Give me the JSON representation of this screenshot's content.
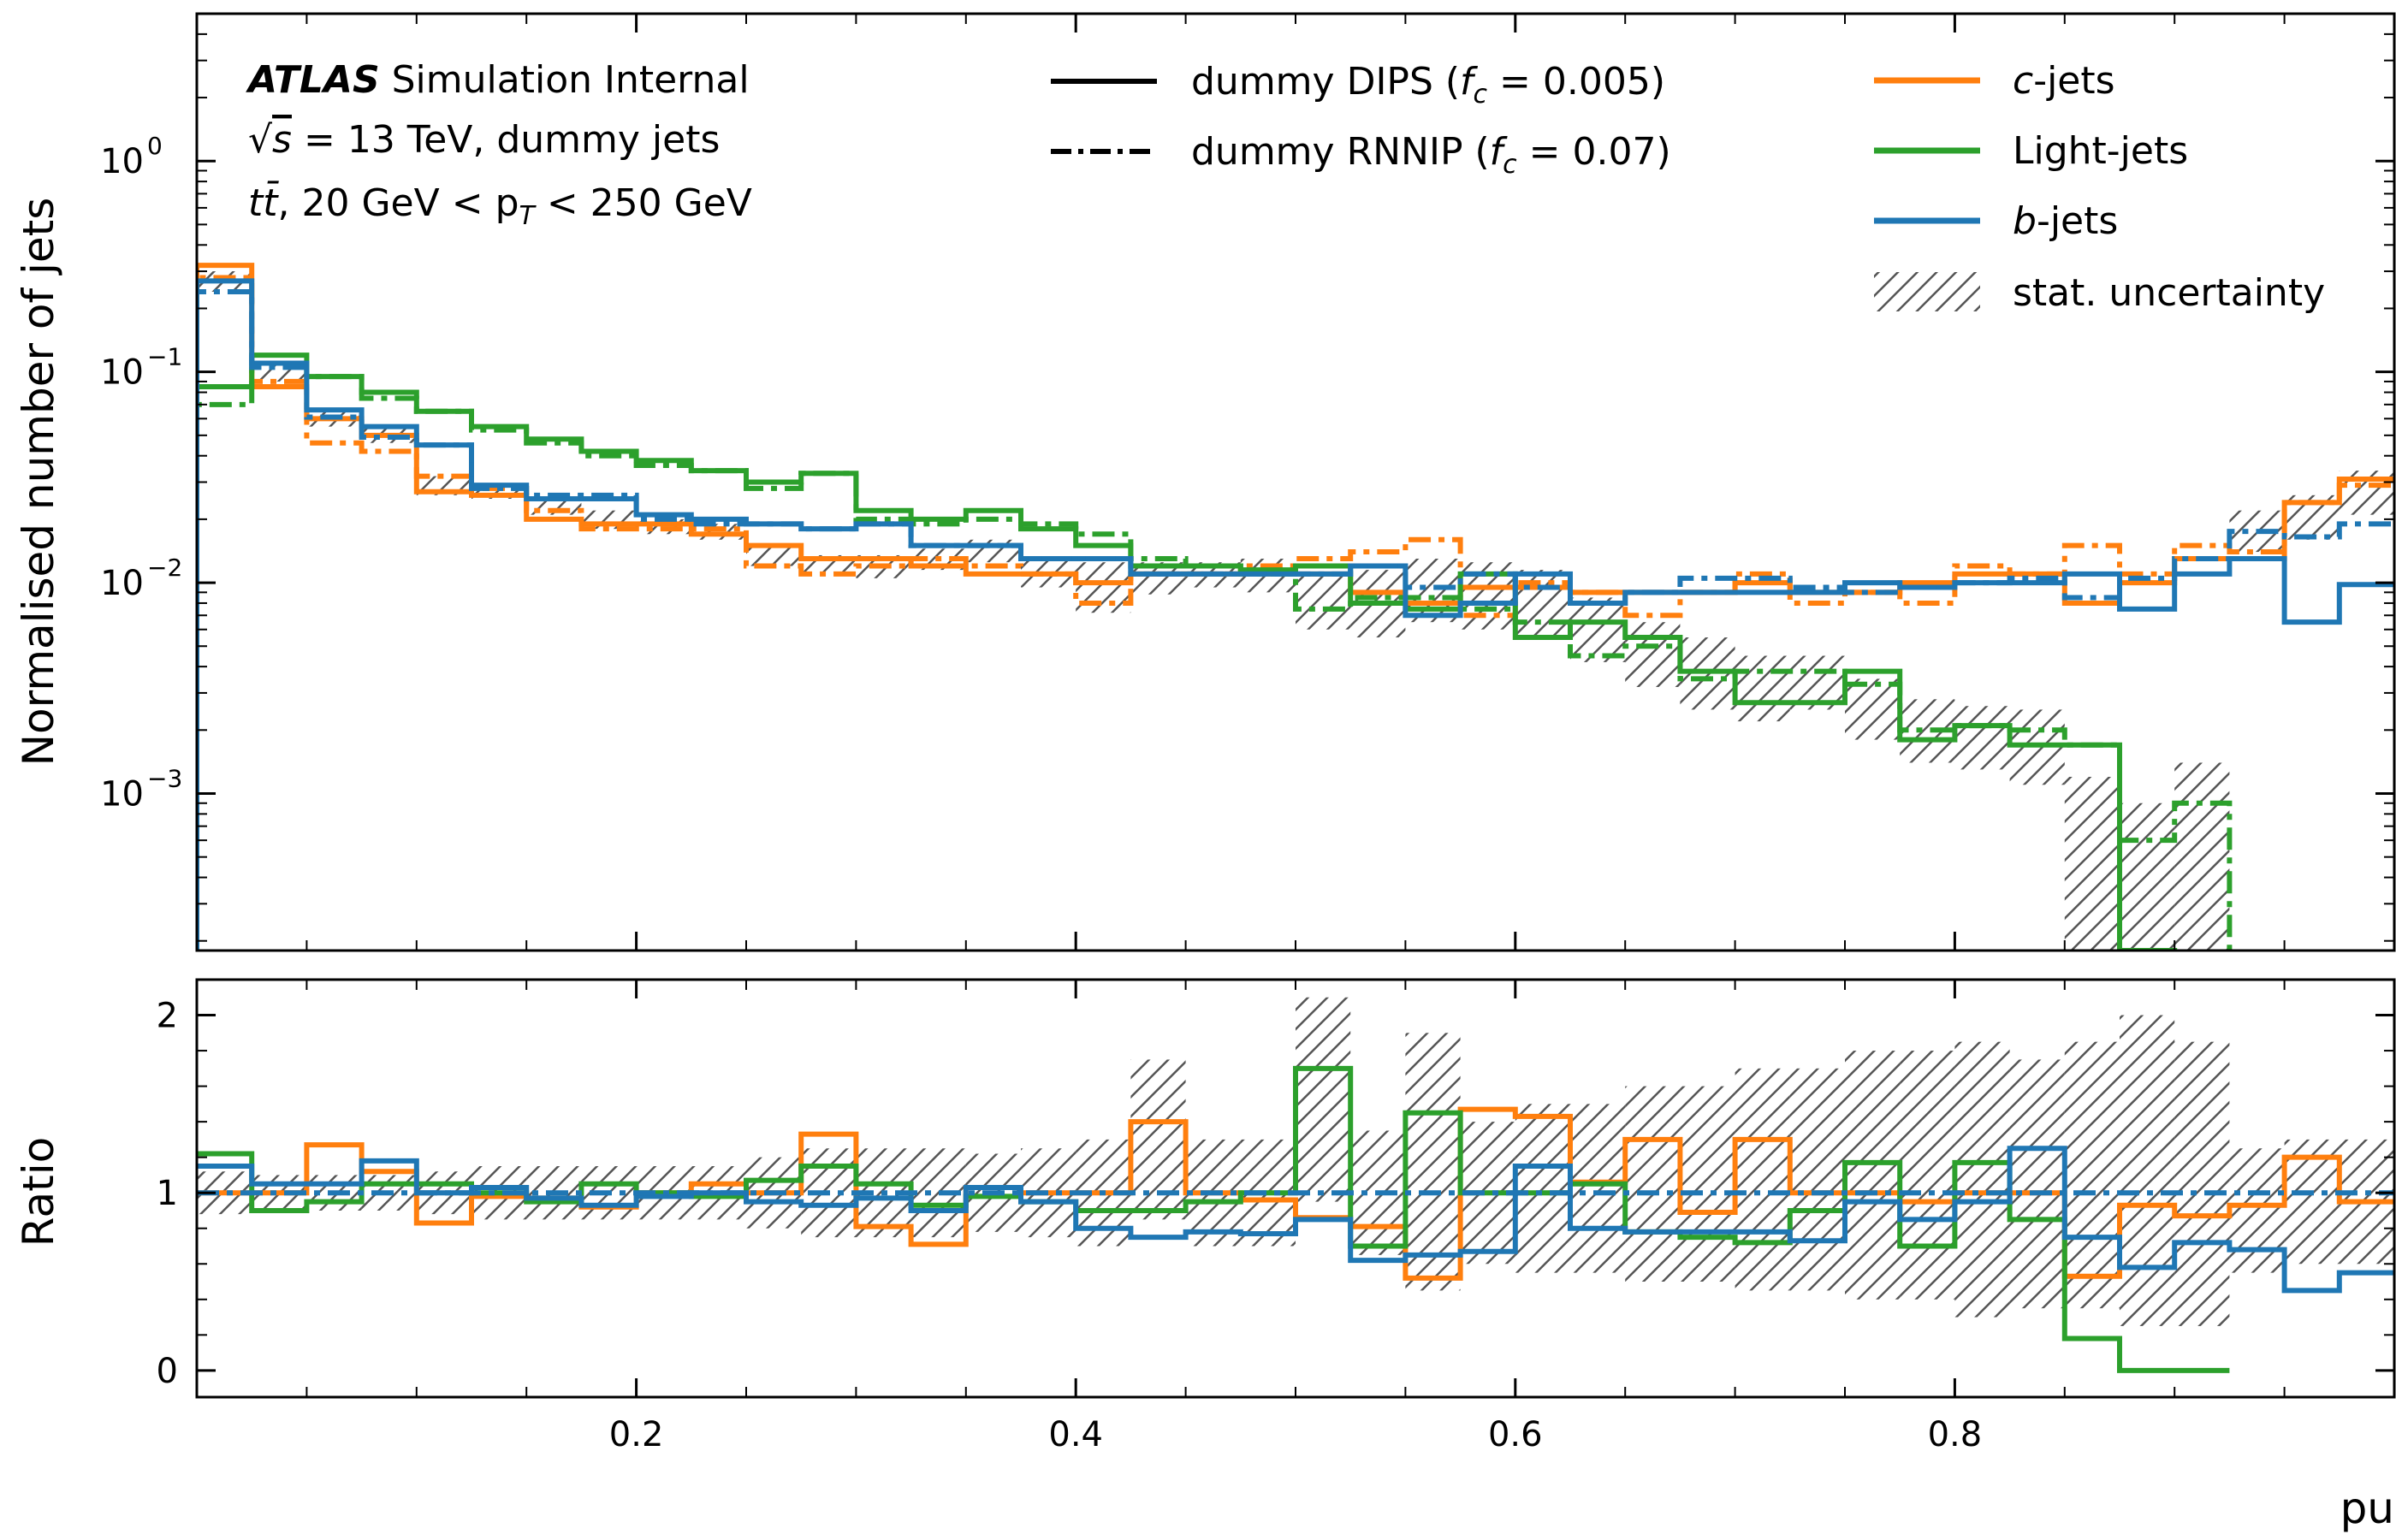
{
  "chart_data": [
    {
      "panel": "main",
      "type": "step",
      "ylabel": "Normalised number of jets",
      "yscale": "log",
      "ylim": [
        0.00018,
        5.0
      ],
      "xlim": [
        0.0,
        1.0
      ],
      "yticks": [
        {
          "label": "10",
          "exp": "0",
          "value": 1.0
        },
        {
          "label": "10",
          "exp": "−1",
          "value": 0.1
        },
        {
          "label": "10",
          "exp": "−2",
          "value": 0.01
        },
        {
          "label": "10",
          "exp": "−3",
          "value": 0.001
        }
      ],
      "bin_edges": [
        0,
        0.025,
        0.05,
        0.075,
        0.1,
        0.125,
        0.15,
        0.175,
        0.2,
        0.225,
        0.25,
        0.275,
        0.3,
        0.325,
        0.35,
        0.375,
        0.4,
        0.425,
        0.45,
        0.475,
        0.5,
        0.525,
        0.55,
        0.575,
        0.6,
        0.625,
        0.65,
        0.675,
        0.7,
        0.725,
        0.75,
        0.775,
        0.8,
        0.825,
        0.85,
        0.875,
        0.9,
        0.925,
        0.95,
        0.975,
        1.0
      ],
      "series": [
        {
          "id": "c-dips",
          "color": "#ff7f0e",
          "style": "solid",
          "values": [
            0.32,
            0.085,
            0.06,
            0.05,
            0.027,
            0.026,
            0.02,
            0.019,
            0.019,
            0.017,
            0.015,
            0.013,
            0.013,
            0.012,
            0.011,
            0.011,
            0.01,
            0.011,
            0.011,
            0.011,
            0.011,
            0.009,
            0.008,
            0.0095,
            0.0095,
            0.009,
            0.009,
            0.009,
            0.01,
            0.009,
            0.009,
            0.01,
            0.011,
            0.011,
            0.008,
            0.01,
            0.013,
            0.013,
            0.024,
            0.031
          ]
        },
        {
          "id": "c-rnnip",
          "color": "#ff7f0e",
          "style": "dashdot",
          "values": [
            0.28,
            0.09,
            0.046,
            0.042,
            0.032,
            0.028,
            0.022,
            0.018,
            0.018,
            0.018,
            0.012,
            0.011,
            0.012,
            0.013,
            0.012,
            0.011,
            0.008,
            0.011,
            0.011,
            0.012,
            0.013,
            0.014,
            0.016,
            0.007,
            0.01,
            0.009,
            0.007,
            0.009,
            0.011,
            0.008,
            0.009,
            0.008,
            0.012,
            0.011,
            0.015,
            0.011,
            0.015,
            0.014,
            0.024,
            0.029
          ]
        },
        {
          "id": "light-dips",
          "color": "#2ca02c",
          "style": "solid",
          "values": [
            0.085,
            0.12,
            0.095,
            0.08,
            0.065,
            0.055,
            0.048,
            0.042,
            0.038,
            0.034,
            0.03,
            0.033,
            0.022,
            0.02,
            0.022,
            0.018,
            0.015,
            0.012,
            0.012,
            0.0115,
            0.012,
            0.008,
            0.0075,
            0.011,
            0.0055,
            0.0065,
            0.0055,
            0.0038,
            0.0027,
            0.0027,
            0.0038,
            0.0018,
            0.0021,
            0.0017,
            0.0017,
            0.00018,
            0.00015,
            0.00015,
            0.00015,
            0.00015
          ]
        },
        {
          "id": "light-rnnip",
          "color": "#2ca02c",
          "style": "dashdot",
          "values": [
            0.07,
            0.11,
            0.095,
            0.075,
            0.065,
            0.053,
            0.046,
            0.04,
            0.036,
            0.034,
            0.028,
            0.033,
            0.02,
            0.019,
            0.02,
            0.019,
            0.017,
            0.013,
            0.012,
            0.011,
            0.0075,
            0.0085,
            0.0085,
            0.0075,
            0.0065,
            0.0045,
            0.005,
            0.0035,
            0.0038,
            0.0038,
            0.0033,
            0.002,
            0.0021,
            0.002,
            0.0017,
            0.0006,
            0.0009,
            0.00015,
            0.00015,
            0.00015
          ]
        },
        {
          "id": "b-dips",
          "color": "#1f77b4",
          "style": "solid",
          "values": [
            0.27,
            0.11,
            0.066,
            0.055,
            0.045,
            0.029,
            0.025,
            0.025,
            0.021,
            0.02,
            0.019,
            0.018,
            0.019,
            0.015,
            0.015,
            0.013,
            0.013,
            0.011,
            0.011,
            0.011,
            0.011,
            0.012,
            0.007,
            0.008,
            0.011,
            0.008,
            0.009,
            0.009,
            0.009,
            0.009,
            0.01,
            0.0095,
            0.01,
            0.01,
            0.011,
            0.0075,
            0.011,
            0.013,
            0.0065,
            0.0098
          ]
        },
        {
          "id": "b-rnnip",
          "color": "#1f77b4",
          "style": "dashdot",
          "values": [
            0.24,
            0.105,
            0.061,
            0.049,
            0.045,
            0.028,
            0.026,
            0.026,
            0.02,
            0.019,
            0.019,
            0.018,
            0.019,
            0.015,
            0.015,
            0.013,
            0.013,
            0.011,
            0.011,
            0.011,
            0.011,
            0.012,
            0.0095,
            0.011,
            0.0095,
            0.008,
            0.009,
            0.0105,
            0.0105,
            0.0095,
            0.009,
            0.0095,
            0.01,
            0.0105,
            0.0085,
            0.0105,
            0.013,
            0.0175,
            0.0165,
            0.019
          ]
        }
      ],
      "uncertainty": [
        {
          "lo": 0.24,
          "hi": 0.3
        },
        {
          "lo": 0.09,
          "hi": 0.11
        },
        {
          "lo": 0.055,
          "hi": 0.065
        },
        {
          "lo": 0.046,
          "hi": 0.054
        },
        {
          "lo": 0.026,
          "hi": 0.032
        },
        {
          "lo": 0.025,
          "hi": 0.029
        },
        {
          "lo": 0.021,
          "hi": 0.025
        },
        {
          "lo": 0.018,
          "hi": 0.022
        },
        {
          "lo": 0.017,
          "hi": 0.02
        },
        {
          "lo": 0.016,
          "hi": 0.019
        },
        {
          "lo": 0.012,
          "hi": 0.015
        },
        {
          "lo": 0.011,
          "hi": 0.0135
        },
        {
          "lo": 0.0105,
          "hi": 0.0135
        },
        {
          "lo": 0.0115,
          "hi": 0.0145
        },
        {
          "lo": 0.0125,
          "hi": 0.016
        },
        {
          "lo": 0.0095,
          "hi": 0.013
        },
        {
          "lo": 0.0072,
          "hi": 0.0125
        },
        {
          "lo": 0.0088,
          "hi": 0.0125
        },
        {
          "lo": 0.0095,
          "hi": 0.0125
        },
        {
          "lo": 0.009,
          "hi": 0.013
        },
        {
          "lo": 0.006,
          "hi": 0.011
        },
        {
          "lo": 0.0055,
          "hi": 0.0115
        },
        {
          "lo": 0.0065,
          "hi": 0.013
        },
        {
          "lo": 0.006,
          "hi": 0.0125
        },
        {
          "lo": 0.0055,
          "hi": 0.0115
        },
        {
          "lo": 0.0042,
          "hi": 0.0085
        },
        {
          "lo": 0.0032,
          "hi": 0.0065
        },
        {
          "lo": 0.0025,
          "hi": 0.0055
        },
        {
          "lo": 0.0022,
          "hi": 0.0045
        },
        {
          "lo": 0.0025,
          "hi": 0.0045
        },
        {
          "lo": 0.0018,
          "hi": 0.0035
        },
        {
          "lo": 0.0014,
          "hi": 0.0028
        },
        {
          "lo": 0.0013,
          "hi": 0.0026
        },
        {
          "lo": 0.0011,
          "hi": 0.0025
        },
        {
          "lo": 0.00018,
          "hi": 0.0012
        },
        {
          "lo": 0.00018,
          "hi": 0.0009
        },
        {
          "lo": 0.00018,
          "hi": 0.0014
        },
        {
          "lo": 0.014,
          "hi": 0.022
        },
        {
          "lo": 0.016,
          "hi": 0.026
        },
        {
          "lo": 0.021,
          "hi": 0.034
        }
      ]
    },
    {
      "panel": "ratio",
      "type": "step",
      "ylabel": "Ratio",
      "xlabel": "pu",
      "ylim": [
        -0.15,
        2.2
      ],
      "xlim": [
        0.0,
        1.0
      ],
      "yticks": [
        {
          "label": "0",
          "value": 0
        },
        {
          "label": "1",
          "value": 1
        },
        {
          "label": "2",
          "value": 2
        }
      ],
      "xticks": [
        {
          "label": "0.2",
          "value": 0.2
        },
        {
          "label": "0.4",
          "value": 0.4
        },
        {
          "label": "0.6",
          "value": 0.6
        },
        {
          "label": "0.8",
          "value": 0.8
        }
      ],
      "series": [
        {
          "id": "ratio-c",
          "color": "#ff7f0e",
          "style": "solid",
          "values": [
            1.0,
            1.0,
            1.27,
            1.12,
            0.83,
            0.98,
            0.97,
            0.92,
            1.0,
            1.05,
            1.0,
            1.33,
            0.81,
            0.71,
            1.03,
            1.0,
            1.0,
            1.4,
            1.0,
            0.96,
            0.86,
            0.81,
            0.52,
            1.47,
            1.43,
            1.06,
            1.3,
            0.89,
            1.3,
            1.0,
            1.0,
            0.95,
            1.0,
            1.0,
            0.53,
            0.93,
            0.87,
            0.93,
            1.2,
            0.95
          ]
        },
        {
          "id": "ratio-light",
          "color": "#2ca02c",
          "style": "solid",
          "values": [
            1.22,
            0.9,
            0.95,
            1.05,
            1.05,
            1.0,
            0.95,
            1.05,
            1.0,
            0.98,
            1.07,
            1.15,
            1.05,
            0.93,
            0.98,
            0.95,
            0.9,
            0.9,
            0.95,
            1.0,
            1.7,
            0.7,
            1.45,
            1.0,
            1.0,
            1.05,
            0.78,
            0.75,
            0.72,
            0.9,
            1.17,
            0.7,
            1.17,
            0.85,
            0.18,
            0.0,
            0.0,
            null,
            null,
            null
          ]
        },
        {
          "id": "ratio-b",
          "color": "#1f77b4",
          "style": "solid",
          "values": [
            1.15,
            1.05,
            1.05,
            1.18,
            1.0,
            1.03,
            0.97,
            0.93,
            0.98,
            1.0,
            0.95,
            0.93,
            0.97,
            0.9,
            1.03,
            0.95,
            0.8,
            0.75,
            0.78,
            0.77,
            0.85,
            0.62,
            0.65,
            0.67,
            1.15,
            0.8,
            0.78,
            0.78,
            0.78,
            0.73,
            0.95,
            0.85,
            0.95,
            1.25,
            0.75,
            0.58,
            0.72,
            0.68,
            0.45,
            0.55
          ]
        },
        {
          "id": "ratio-ref",
          "color": "#1f77b4",
          "style": "dashdot",
          "values": [
            1,
            1,
            1,
            1,
            1,
            1,
            1,
            1,
            1,
            1,
            1,
            1,
            1,
            1,
            1,
            1,
            1,
            1,
            1,
            1,
            1,
            1,
            1,
            1,
            1,
            1,
            1,
            1,
            1,
            1,
            1,
            1,
            1,
            1,
            1,
            1,
            1,
            1,
            1,
            1
          ]
        }
      ],
      "uncertainty": [
        {
          "lo": 0.88,
          "hi": 1.12
        },
        {
          "lo": 0.9,
          "hi": 1.1
        },
        {
          "lo": 0.9,
          "hi": 1.1
        },
        {
          "lo": 0.9,
          "hi": 1.1
        },
        {
          "lo": 0.88,
          "hi": 1.12
        },
        {
          "lo": 0.85,
          "hi": 1.15
        },
        {
          "lo": 0.85,
          "hi": 1.15
        },
        {
          "lo": 0.85,
          "hi": 1.15
        },
        {
          "lo": 0.85,
          "hi": 1.15
        },
        {
          "lo": 0.85,
          "hi": 1.15
        },
        {
          "lo": 0.8,
          "hi": 1.2
        },
        {
          "lo": 0.75,
          "hi": 1.25
        },
        {
          "lo": 0.75,
          "hi": 1.25
        },
        {
          "lo": 0.75,
          "hi": 1.25
        },
        {
          "lo": 0.78,
          "hi": 1.22
        },
        {
          "lo": 0.75,
          "hi": 1.25
        },
        {
          "lo": 0.7,
          "hi": 1.3
        },
        {
          "lo": 0.85,
          "hi": 1.75
        },
        {
          "lo": 0.7,
          "hi": 1.3
        },
        {
          "lo": 0.7,
          "hi": 1.3
        },
        {
          "lo": 0.95,
          "hi": 2.1
        },
        {
          "lo": 0.65,
          "hi": 1.35
        },
        {
          "lo": 0.45,
          "hi": 1.9
        },
        {
          "lo": 0.6,
          "hi": 1.4
        },
        {
          "lo": 0.55,
          "hi": 1.5
        },
        {
          "lo": 0.55,
          "hi": 1.5
        },
        {
          "lo": 0.5,
          "hi": 1.6
        },
        {
          "lo": 0.5,
          "hi": 1.6
        },
        {
          "lo": 0.45,
          "hi": 1.7
        },
        {
          "lo": 0.45,
          "hi": 1.7
        },
        {
          "lo": 0.4,
          "hi": 1.8
        },
        {
          "lo": 0.4,
          "hi": 1.8
        },
        {
          "lo": 0.3,
          "hi": 1.85
        },
        {
          "lo": 0.35,
          "hi": 1.75
        },
        {
          "lo": 0.35,
          "hi": 1.85
        },
        {
          "lo": 0.25,
          "hi": 2.0
        },
        {
          "lo": 0.25,
          "hi": 1.85
        },
        {
          "lo": 0.55,
          "hi": 1.25
        },
        {
          "lo": 0.6,
          "hi": 1.3
        },
        {
          "lo": 0.6,
          "hi": 1.3
        }
      ]
    }
  ],
  "annotation": {
    "atlas": "ATLAS",
    "atlas_suffix": " Simulation Internal",
    "line2_pre": "√",
    "line2_s": "s",
    "line2_post": " = 13 TeV, dummy jets",
    "line3_tt": "tt̄",
    "line3_post": ", 20 GeV  < p",
    "line3_sub": "T",
    "line3_end": " < 250 GeV"
  },
  "legend_styles": [
    {
      "id": "dips",
      "pre": "dummy DIPS (",
      "f": "f",
      "sub": "c",
      "post": " = 0.005)",
      "style": "solid"
    },
    {
      "id": "rnnip",
      "pre": "dummy RNNIP (",
      "f": "f",
      "sub": "c",
      "post": " = 0.07)",
      "style": "dashdot"
    }
  ],
  "legend_flavours": [
    {
      "id": "c",
      "italic": "c",
      "text": "-jets",
      "color": "#ff7f0e"
    },
    {
      "id": "light",
      "italic": "",
      "text": "Light-jets",
      "color": "#2ca02c"
    },
    {
      "id": "b",
      "italic": "b",
      "text": "-jets",
      "color": "#1f77b4"
    },
    {
      "id": "unc",
      "italic": "",
      "text": "stat. uncertainty",
      "color": "#555555"
    }
  ]
}
